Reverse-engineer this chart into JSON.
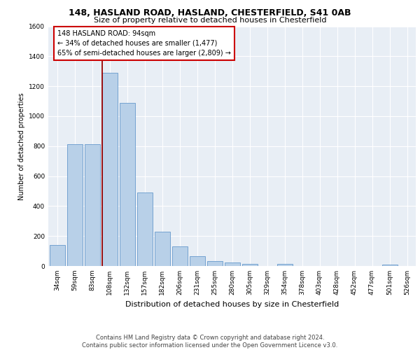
{
  "title1": "148, HASLAND ROAD, HASLAND, CHESTERFIELD, S41 0AB",
  "title2": "Size of property relative to detached houses in Chesterfield",
  "xlabel": "Distribution of detached houses by size in Chesterfield",
  "ylabel": "Number of detached properties",
  "categories": [
    "34sqm",
    "59sqm",
    "83sqm",
    "108sqm",
    "132sqm",
    "157sqm",
    "182sqm",
    "206sqm",
    "231sqm",
    "255sqm",
    "280sqm",
    "305sqm",
    "329sqm",
    "354sqm",
    "378sqm",
    "403sqm",
    "428sqm",
    "452sqm",
    "477sqm",
    "501sqm",
    "526sqm"
  ],
  "values": [
    140,
    815,
    815,
    1290,
    1090,
    490,
    230,
    130,
    65,
    35,
    25,
    15,
    0,
    15,
    0,
    0,
    0,
    0,
    0,
    10,
    0
  ],
  "bar_color": "#b8d0e8",
  "bar_edge_color": "#6699cc",
  "background_color": "#e8eef5",
  "grid_color": "#ffffff",
  "annotation_text": "148 HASLAND ROAD: 94sqm\n← 34% of detached houses are smaller (1,477)\n65% of semi-detached houses are larger (2,809) →",
  "annotation_box_color": "#ffffff",
  "annotation_box_edge": "#cc0000",
  "footer": "Contains HM Land Registry data © Crown copyright and database right 2024.\nContains public sector information licensed under the Open Government Licence v3.0.",
  "ylim": [
    0,
    1600
  ],
  "yticks": [
    0,
    200,
    400,
    600,
    800,
    1000,
    1200,
    1400,
    1600
  ],
  "title1_fontsize": 9,
  "title2_fontsize": 8,
  "xlabel_fontsize": 8,
  "ylabel_fontsize": 7,
  "tick_fontsize": 6.5,
  "footer_fontsize": 6,
  "annot_fontsize": 7
}
